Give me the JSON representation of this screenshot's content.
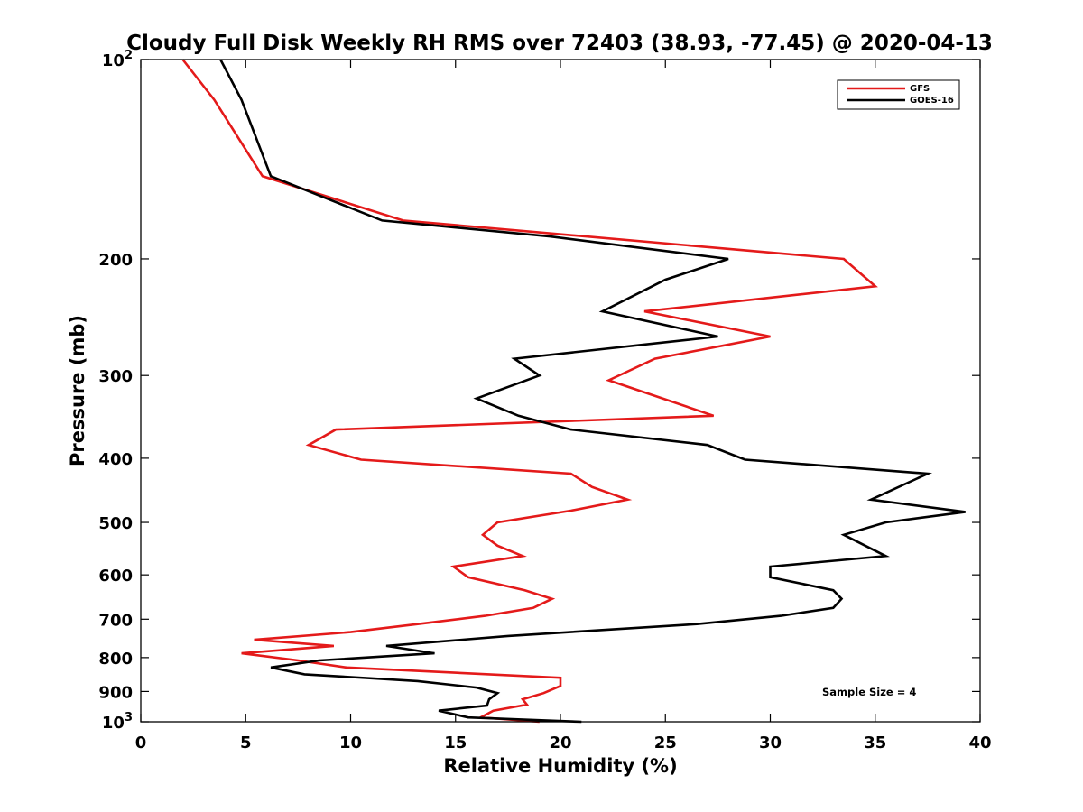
{
  "chart_data": {
    "type": "line",
    "title": "Cloudy Full Disk Weekly RH RMS over 72403 (38.93, -77.45) @ 2020-04-13",
    "xlabel": "Relative Humidity (%)",
    "ylabel": "Pressure (mb)",
    "xlim": [
      0,
      40
    ],
    "ylim": [
      100,
      1000
    ],
    "y_scale": "log",
    "y_reversed": true,
    "x_ticks": [
      "0",
      "5",
      "10",
      "15",
      "20",
      "25",
      "30",
      "35",
      "40"
    ],
    "y_ticks": [
      {
        "value": 100,
        "base": "10",
        "exp": "2"
      },
      {
        "value": 200,
        "label": "200"
      },
      {
        "value": 300,
        "label": "300"
      },
      {
        "value": 400,
        "label": "400"
      },
      {
        "value": 500,
        "label": "500"
      },
      {
        "value": 600,
        "label": "600"
      },
      {
        "value": 700,
        "label": "700"
      },
      {
        "value": 800,
        "label": "800"
      },
      {
        "value": 900,
        "label": "900"
      },
      {
        "value": 1000,
        "base": "10",
        "exp": "3"
      }
    ],
    "grid": false,
    "legend_position": "top-right",
    "annotation": "Sample Size = 4",
    "series": [
      {
        "name": "GFS",
        "color": "#e41a1a",
        "points": [
          [
            2.0,
            100
          ],
          [
            3.5,
            115
          ],
          [
            5.8,
            150
          ],
          [
            12.5,
            175
          ],
          [
            33.5,
            200
          ],
          [
            35.0,
            220
          ],
          [
            24.0,
            240
          ],
          [
            30.0,
            262
          ],
          [
            24.5,
            283
          ],
          [
            22.3,
            305
          ],
          [
            27.3,
            345
          ],
          [
            9.3,
            362
          ],
          [
            8.0,
            382
          ],
          [
            10.5,
            402
          ],
          [
            20.5,
            422
          ],
          [
            21.5,
            442
          ],
          [
            23.2,
            462
          ],
          [
            20.5,
            480
          ],
          [
            17.0,
            500
          ],
          [
            16.3,
            522
          ],
          [
            17.0,
            542
          ],
          [
            18.2,
            562
          ],
          [
            14.9,
            583
          ],
          [
            15.6,
            605
          ],
          [
            18.3,
            633
          ],
          [
            19.6,
            652
          ],
          [
            18.7,
            673
          ],
          [
            16.4,
            692
          ],
          [
            13.2,
            712
          ],
          [
            10.0,
            732
          ],
          [
            5.4,
            752
          ],
          [
            9.2,
            768
          ],
          [
            4.8,
            788
          ],
          [
            7.5,
            808
          ],
          [
            9.8,
            828
          ],
          [
            20.0,
            858
          ],
          [
            20.0,
            883
          ],
          [
            19.2,
            905
          ],
          [
            18.2,
            925
          ],
          [
            18.4,
            942
          ],
          [
            16.8,
            962
          ],
          [
            16.2,
            985
          ],
          [
            19.0,
            1000
          ]
        ]
      },
      {
        "name": "GOES-16",
        "color": "#000000",
        "points": [
          [
            3.8,
            100
          ],
          [
            4.8,
            115
          ],
          [
            6.2,
            150
          ],
          [
            11.5,
            175
          ],
          [
            19.5,
            185
          ],
          [
            28.0,
            200
          ],
          [
            25.0,
            215
          ],
          [
            22.0,
            240
          ],
          [
            27.5,
            262
          ],
          [
            17.8,
            283
          ],
          [
            19.0,
            300
          ],
          [
            16.0,
            325
          ],
          [
            18.0,
            345
          ],
          [
            20.5,
            362
          ],
          [
            27.0,
            382
          ],
          [
            28.8,
            402
          ],
          [
            37.5,
            422
          ],
          [
            34.8,
            462
          ],
          [
            39.3,
            482
          ],
          [
            35.5,
            500
          ],
          [
            33.5,
            522
          ],
          [
            35.5,
            562
          ],
          [
            30.0,
            583
          ],
          [
            30.0,
            605
          ],
          [
            33.0,
            633
          ],
          [
            33.4,
            652
          ],
          [
            33.0,
            673
          ],
          [
            30.5,
            692
          ],
          [
            26.5,
            712
          ],
          [
            17.5,
            742
          ],
          [
            11.7,
            768
          ],
          [
            14.0,
            788
          ],
          [
            8.5,
            808
          ],
          [
            6.2,
            828
          ],
          [
            7.8,
            848
          ],
          [
            13.2,
            868
          ],
          [
            16.0,
            888
          ],
          [
            17.0,
            905
          ],
          [
            16.6,
            925
          ],
          [
            16.5,
            945
          ],
          [
            14.2,
            962
          ],
          [
            15.6,
            985
          ],
          [
            21.0,
            1000
          ]
        ]
      }
    ]
  }
}
